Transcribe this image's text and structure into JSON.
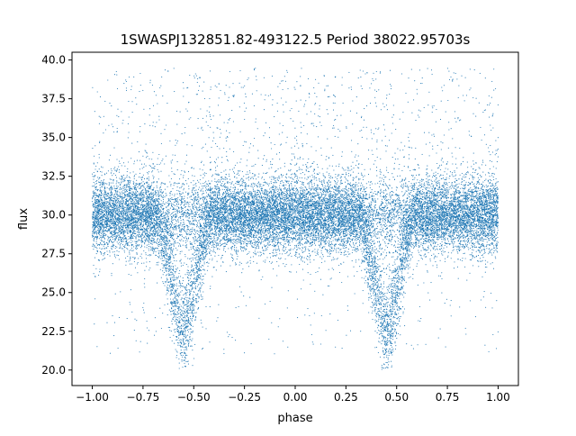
{
  "chart_data": {
    "type": "scatter",
    "title": "1SWASPJ132851.82-493122.5 Period 38022.95703s",
    "xlabel": "phase",
    "ylabel": "flux",
    "xlim": [
      -1.1,
      1.1
    ],
    "ylim": [
      19.0,
      40.5
    ],
    "x_ticks": [
      -1.0,
      -0.75,
      -0.5,
      -0.25,
      0.0,
      0.25,
      0.5,
      0.75,
      1.0
    ],
    "x_tick_labels": [
      "−1.00",
      "−0.75",
      "−0.50",
      "−0.25",
      "0.00",
      "0.25",
      "0.50",
      "0.75",
      "1.00"
    ],
    "y_ticks": [
      20.0,
      22.5,
      25.0,
      27.5,
      30.0,
      32.5,
      35.0,
      37.5,
      40.0
    ],
    "y_tick_labels": [
      "20.0",
      "22.5",
      "25.0",
      "27.5",
      "30.0",
      "32.5",
      "35.0",
      "37.5",
      "40.0"
    ],
    "point_color": "#1f77b4",
    "grid": false,
    "series": [
      {
        "name": "",
        "x_range": [
          -1.0,
          1.0
        ],
        "baseline_flux": 30.0,
        "baseline_spread": 1.2,
        "upper_outliers_max": 39.5,
        "eclipses": [
          {
            "center_phase": -0.55,
            "min_flux": 20.0,
            "half_width_phase": 0.13
          },
          {
            "center_phase": 0.45,
            "min_flux": 20.0,
            "half_width_phase": 0.13
          }
        ]
      }
    ]
  }
}
